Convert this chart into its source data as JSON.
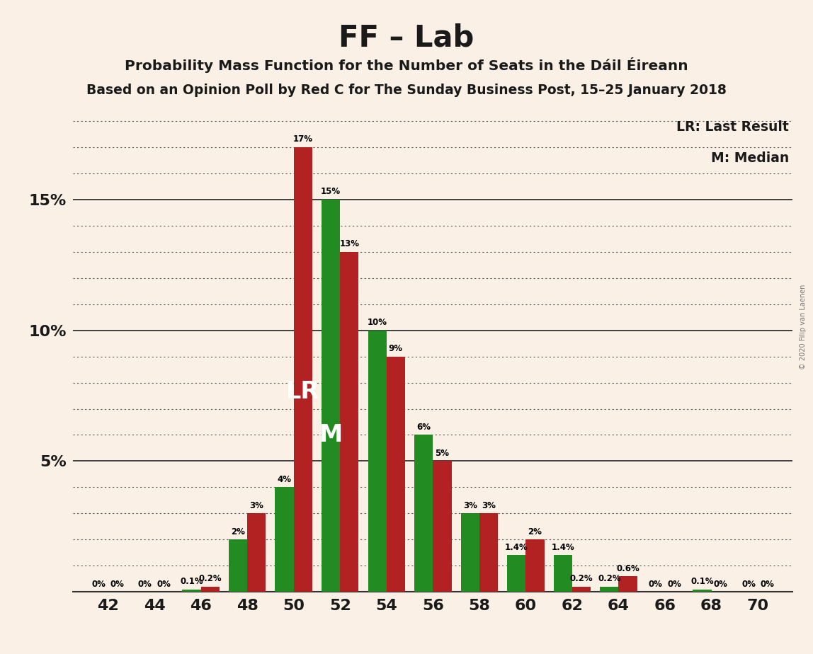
{
  "title": "FF – Lab",
  "subtitle1": "Probability Mass Function for the Number of Seats in the Dáil Éireann",
  "subtitle2": "Based on an Opinion Poll by Red C for The Sunday Business Post, 15–25 January 2018",
  "copyright": "© 2020 Filip van Laenen",
  "lr_label": "LR: Last Result",
  "m_label": "M: Median",
  "lr_annotation": "LR",
  "m_annotation": "M",
  "lr_seat": 50,
  "m_seat": 52,
  "background_color": "#FAF0E6",
  "red_color": "#B22222",
  "green_color": "#228B22",
  "seats": [
    42,
    44,
    46,
    48,
    50,
    52,
    54,
    56,
    58,
    60,
    62,
    64,
    66,
    68,
    70
  ],
  "pmf_values": [
    0.0,
    0.0,
    0.001,
    0.02,
    0.04,
    0.15,
    0.1,
    0.06,
    0.03,
    0.014,
    0.014,
    0.002,
    0.0,
    0.001,
    0.0
  ],
  "lr_values": [
    0.0,
    0.0,
    0.002,
    0.03,
    0.17,
    0.13,
    0.09,
    0.05,
    0.03,
    0.02,
    0.002,
    0.006,
    0.0,
    0.0,
    0.0
  ],
  "pmf_labels": [
    "0%",
    "0%",
    "0.1%",
    "2%",
    "4%",
    "15%",
    "10%",
    "6%",
    "3%",
    "1.4%",
    "1.4%",
    "0.2%",
    "0%",
    "0.1%",
    "0%"
  ],
  "lr_labels": [
    "0%",
    "0%",
    "0.2%",
    "3%",
    "17%",
    "13%",
    "9%",
    "5%",
    "3%",
    "2%",
    "0.2%",
    "0.6%",
    "0%",
    "0%",
    "0%"
  ],
  "ylim": [
    0,
    0.185
  ],
  "ytick_positions": [
    0.0,
    0.05,
    0.1,
    0.15
  ],
  "ytick_labels": [
    "",
    "5%",
    "10%",
    "15%"
  ],
  "solid_lines": [
    0.05,
    0.1,
    0.15
  ],
  "dotted_yticks": [
    0.01,
    0.02,
    0.03,
    0.04,
    0.06,
    0.07,
    0.08,
    0.09,
    0.11,
    0.12,
    0.13,
    0.14,
    0.16,
    0.17,
    0.18
  ],
  "bar_width": 0.4,
  "figsize": [
    11.48,
    9.24
  ],
  "dpi": 100
}
